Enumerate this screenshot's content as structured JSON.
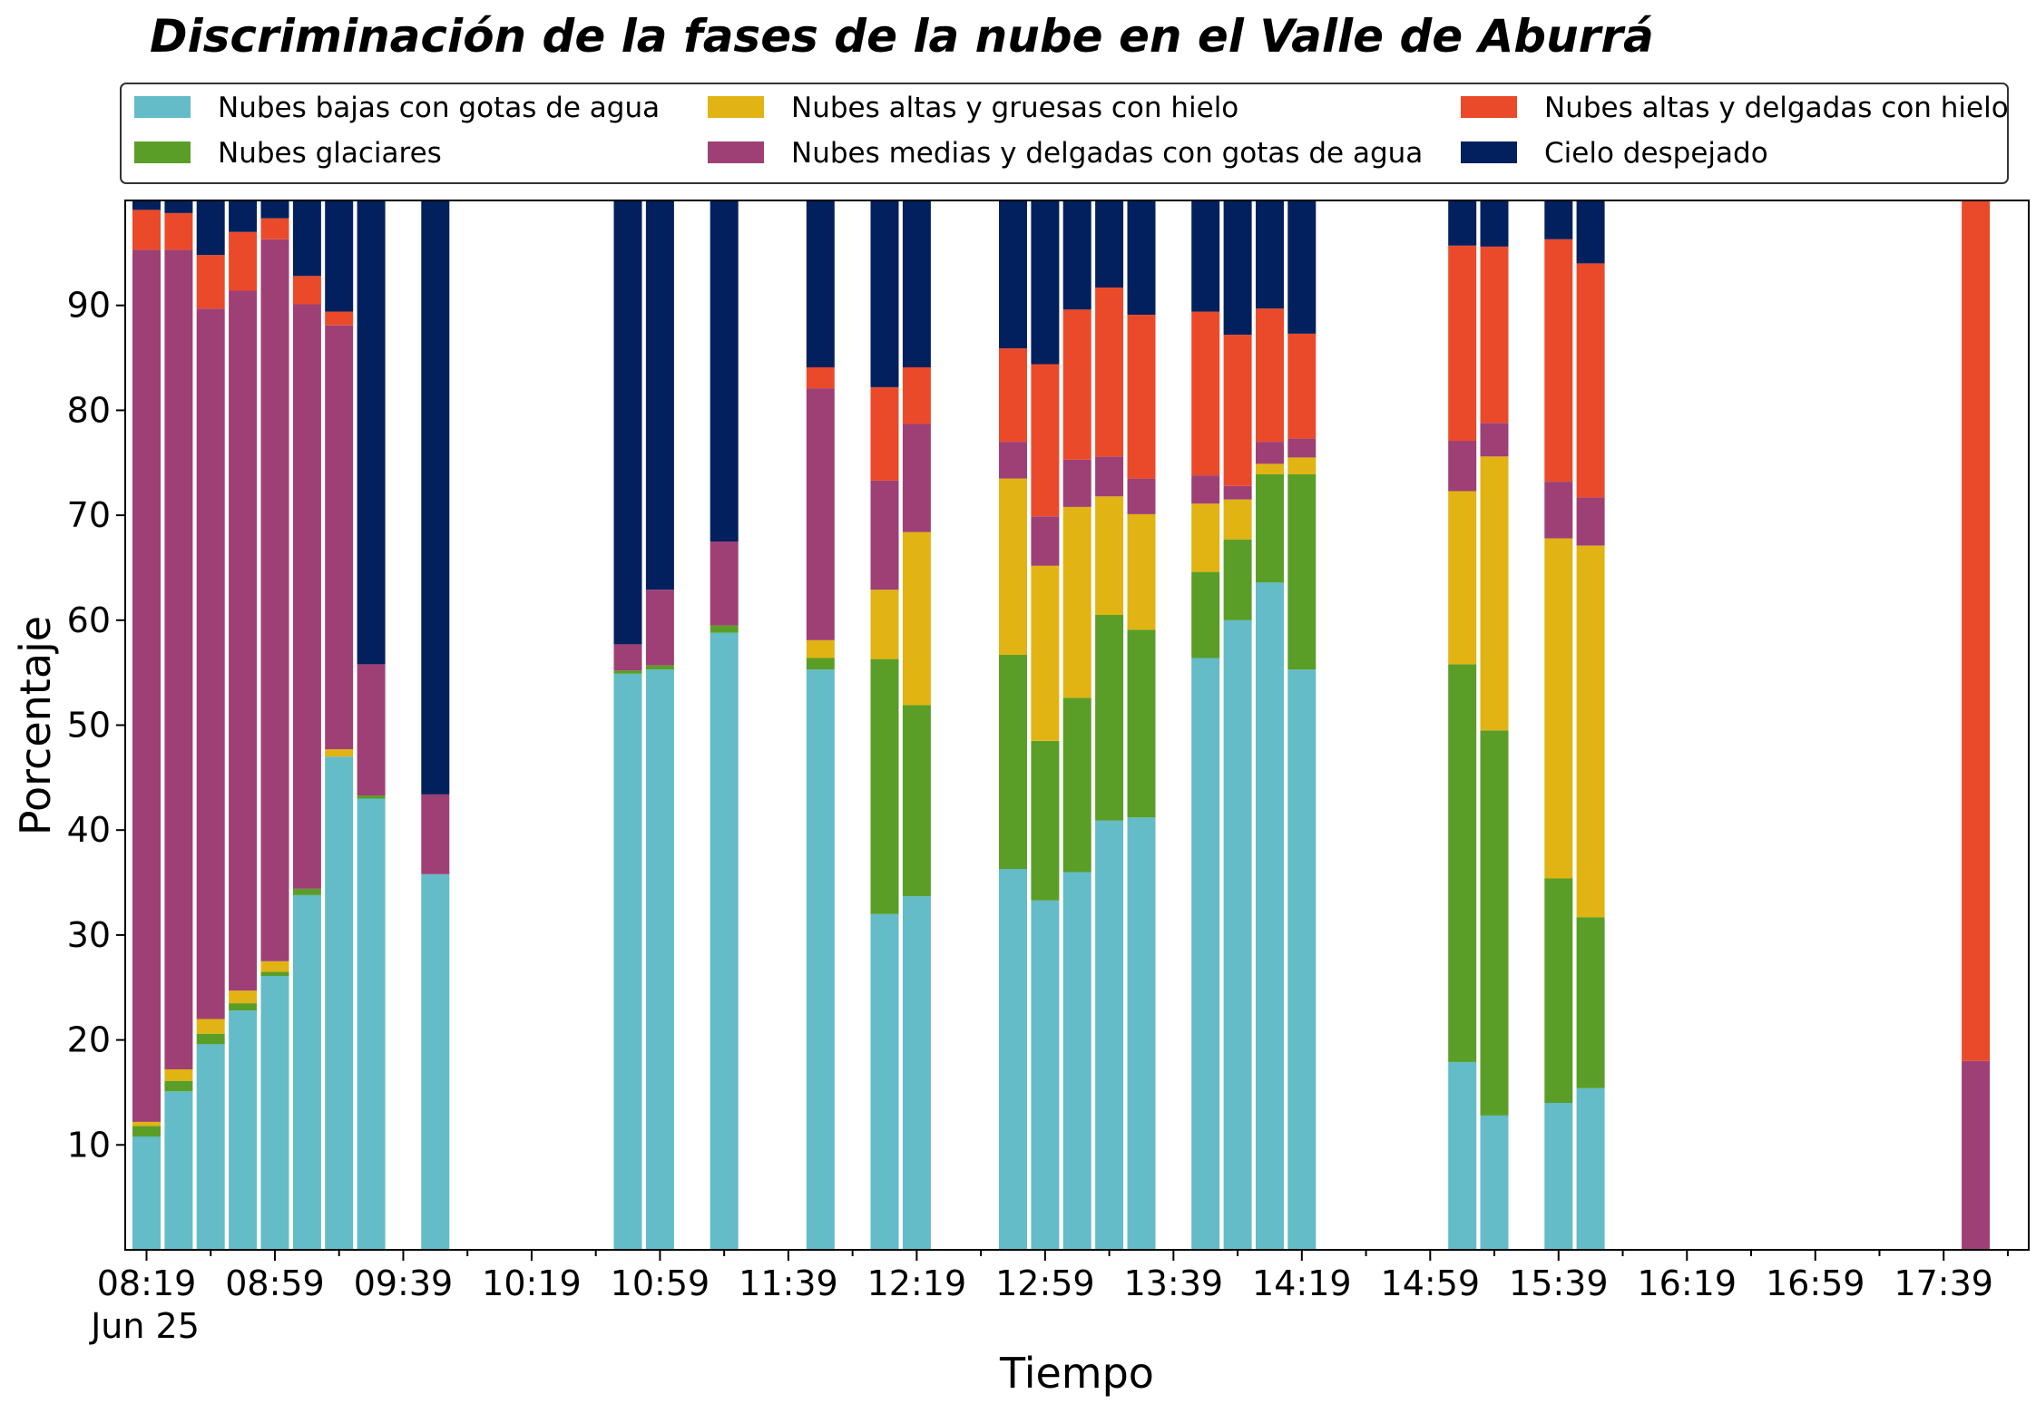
{
  "chart_data": {
    "type": "bar",
    "stacked": true,
    "title": "Discriminación de la fases de la nube en el Valle de Aburrá",
    "xlabel": "Tiempo",
    "ylabel": "Porcentaje",
    "ylim": [
      0,
      100
    ],
    "yticks": [
      10,
      20,
      30,
      40,
      50,
      60,
      70,
      80,
      90
    ],
    "xtick_labels": [
      "08:19",
      "08:59",
      "09:39",
      "10:19",
      "10:59",
      "11:39",
      "12:19",
      "12:59",
      "13:39",
      "14:19",
      "14:59",
      "15:39",
      "16:19",
      "16:59",
      "17:39"
    ],
    "x_date_label": "Jun 25",
    "grid": false,
    "legend_position": "top",
    "categories": [
      "08:19",
      "08:29",
      "08:39",
      "08:49",
      "08:59",
      "09:09",
      "09:19",
      "09:29",
      "09:49",
      "10:49",
      "10:59",
      "11:19",
      "11:49",
      "12:09",
      "12:19",
      "12:49",
      "12:59",
      "13:09",
      "13:19",
      "13:29",
      "13:49",
      "13:59",
      "14:09",
      "14:19",
      "15:09",
      "15:19",
      "15:39",
      "15:49",
      "17:49"
    ],
    "series": [
      {
        "name": "Nubes bajas con gotas de agua",
        "color": "#63bcc8",
        "values": [
          10.8,
          15.1,
          19.6,
          22.8,
          26.1,
          33.8,
          47.0,
          43.0,
          35.8,
          54.9,
          55.3,
          58.8,
          55.3,
          32.0,
          33.7,
          36.3,
          33.3,
          36.0,
          40.9,
          41.2,
          56.4,
          60.0,
          63.6,
          55.3,
          17.9,
          12.8,
          14.0,
          15.4,
          0
        ]
      },
      {
        "name": "Nubes glaciares",
        "color": "#5a9e28",
        "values": [
          1.0,
          1.0,
          1.0,
          0.7,
          0.4,
          0.6,
          0,
          0.3,
          0,
          0.3,
          0.4,
          0.7,
          1.1,
          24.3,
          18.2,
          20.4,
          15.2,
          16.6,
          19.6,
          17.9,
          8.2,
          7.7,
          10.3,
          18.6,
          37.9,
          36.7,
          21.4,
          16.3,
          0
        ]
      },
      {
        "name": "Nubes altas y gruesas con hielo",
        "color": "#e1b413",
        "values": [
          0.4,
          1.1,
          1.4,
          1.2,
          1.0,
          0,
          0.7,
          0,
          0,
          0,
          0,
          0,
          1.7,
          6.6,
          16.5,
          16.8,
          16.7,
          18.2,
          11.3,
          11.0,
          6.5,
          3.8,
          1.0,
          1.6,
          16.5,
          26.1,
          32.4,
          35.4,
          0
        ]
      },
      {
        "name": "Nubes medias y delgadas con gotas de agua",
        "color": "#9e4075",
        "values": [
          83.1,
          78.1,
          67.7,
          66.7,
          68.8,
          55.7,
          40.4,
          12.5,
          7.6,
          2.5,
          7.2,
          8.0,
          24.0,
          10.4,
          10.3,
          3.5,
          4.7,
          4.5,
          3.8,
          3.4,
          2.7,
          1.3,
          2.1,
          1.8,
          4.8,
          3.2,
          5.4,
          4.6,
          18.0
        ]
      },
      {
        "name": "Nubes altas y delgadas con hielo",
        "color": "#eb4a2a",
        "values": [
          3.8,
          3.5,
          5.1,
          5.6,
          2.0,
          2.7,
          1.3,
          0,
          0,
          0,
          0,
          0,
          2.0,
          8.9,
          5.4,
          8.9,
          14.5,
          14.3,
          16.1,
          15.6,
          15.6,
          14.4,
          12.7,
          10.0,
          18.6,
          16.8,
          23.1,
          22.3,
          82.0
        ]
      },
      {
        "name": "Cielo despejado",
        "color": "#03205e",
        "values": [
          0.9,
          1.2,
          5.2,
          3.0,
          1.7,
          7.2,
          10.6,
          44.2,
          56.6,
          42.3,
          37.1,
          32.5,
          15.9,
          17.8,
          15.9,
          14.1,
          15.6,
          10.4,
          8.3,
          10.9,
          10.6,
          12.8,
          10.3,
          12.7,
          4.3,
          4.4,
          3.7,
          6.0,
          0
        ]
      }
    ]
  }
}
